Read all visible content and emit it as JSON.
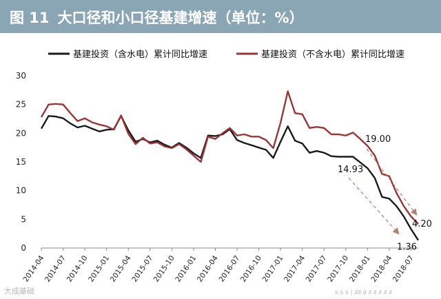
{
  "header": {
    "fig_no": "图 11",
    "title": "大口径和小口径基建增速（单位：%）",
    "bg_color": "#8aa6b4"
  },
  "watermark": {
    "left": "大成基础",
    "right": "s s s | ∂∂ ∂ ∂ ∂ ∂ ∂ ∂"
  },
  "chart_data": {
    "type": "line",
    "ylim": [
      0,
      30
    ],
    "yticks": [
      0,
      5,
      10,
      15,
      20,
      25,
      30
    ],
    "x": [
      "2014-04",
      "2014-05",
      "2014-06",
      "2014-07",
      "2014-08",
      "2014-09",
      "2014-10",
      "2014-11",
      "2014-12",
      "2015-01",
      "2015-02",
      "2015-03",
      "2015-04",
      "2015-05",
      "2015-06",
      "2015-07",
      "2015-08",
      "2015-09",
      "2015-10",
      "2015-11",
      "2015-12",
      "2016-01",
      "2016-02",
      "2016-03",
      "2016-04",
      "2016-05",
      "2016-06",
      "2016-07",
      "2016-08",
      "2016-09",
      "2016-10",
      "2016-11",
      "2016-12",
      "2017-01",
      "2017-02",
      "2017-03",
      "2017-04",
      "2017-05",
      "2017-06",
      "2017-07",
      "2017-08",
      "2017-09",
      "2017-10",
      "2017-11",
      "2017-12",
      "2018-01",
      "2018-02",
      "2018-03",
      "2018-04",
      "2018-05",
      "2018-06",
      "2018-07",
      "2018-08"
    ],
    "x_tick_labels": [
      "2014-04",
      "2014-07",
      "2014-10",
      "2015-01",
      "2015-04",
      "2015-07",
      "2015-10",
      "2016-01",
      "2016-04",
      "2016-07",
      "2016-10",
      "2017-01",
      "2017-04",
      "2017-07",
      "2017-10",
      "2018-01",
      "2018-04",
      "2018-07"
    ],
    "legend_position": "top",
    "series": [
      {
        "name": "基建投资（含水电）累计同比增速",
        "color": "#1a1a1a",
        "values": [
          20.8,
          23.0,
          22.9,
          22.6,
          21.7,
          21.0,
          21.3,
          20.8,
          20.3,
          20.6,
          20.7,
          23.0,
          20.5,
          18.5,
          19.0,
          18.4,
          18.7,
          18.0,
          17.5,
          18.3,
          17.5,
          16.5,
          15.7,
          19.6,
          19.5,
          19.8,
          20.7,
          18.8,
          18.3,
          17.9,
          17.5,
          17.1,
          15.7,
          18.5,
          21.2,
          18.7,
          18.2,
          16.6,
          16.9,
          16.6,
          16.0,
          15.9,
          15.9,
          15.9,
          14.9,
          13.9,
          12.2,
          8.9,
          8.6,
          7.3,
          5.5,
          3.3,
          1.36
        ]
      },
      {
        "name": "基建投资（不含水电）累计同比增速",
        "color": "#9b3434",
        "values": [
          22.8,
          25.0,
          25.1,
          25.0,
          23.5,
          22.1,
          22.6,
          21.9,
          21.5,
          21.2,
          20.6,
          23.1,
          19.9,
          18.1,
          19.2,
          18.2,
          18.4,
          17.7,
          17.4,
          18.1,
          17.2,
          16.1,
          15.0,
          19.4,
          19.0,
          20.0,
          20.9,
          19.6,
          19.8,
          19.4,
          19.4,
          18.8,
          17.4,
          21.8,
          27.3,
          23.5,
          23.3,
          20.9,
          21.1,
          20.9,
          19.8,
          19.8,
          19.6,
          20.1,
          19.0,
          17.8,
          16.1,
          12.9,
          12.5,
          9.6,
          7.3,
          5.5,
          4.2
        ]
      }
    ],
    "annotations": [
      {
        "text": "19.00",
        "from_index": 44,
        "to_index": 52,
        "series": 1,
        "to_value": 4.2,
        "end_label": "4.20"
      },
      {
        "text": "14.93",
        "from_index": 44,
        "to_index": 52,
        "series": 0,
        "to_value": 1.36,
        "end_label": "1.36"
      }
    ]
  }
}
